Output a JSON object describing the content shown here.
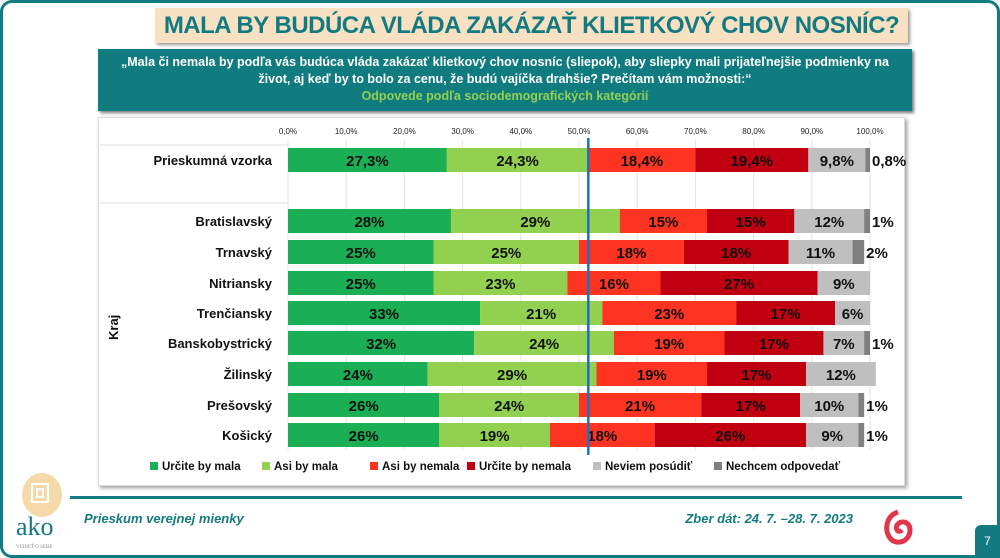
{
  "header": {
    "title": "MALA BY BUDÚCA VLÁDA ZAKÁZAŤ KLIETKOVÝ CHOV NOSNÍC?",
    "question": "„Mala či nemala by podľa vás budúca vláda zakázať klietkový chov nosníc (sliepok), aby sliepky mali prijateľnejšie podmienky na život, aj keď by to bolo za cenu, že budú vajíčka drahšie? Prečítam vám možnosti:“",
    "subtitle": "Odpovede podľa sociodemografických kategórií"
  },
  "chart_data": {
    "type": "bar",
    "orientation": "horizontal",
    "stacked": true,
    "xlim": [
      0,
      100
    ],
    "x_ticks": [
      "0,0%",
      "10,0%",
      "20,0%",
      "30,0%",
      "40,0%",
      "50,0%",
      "60,0%",
      "70,0%",
      "80,0%",
      "90,0%",
      "100,0%"
    ],
    "grid": true,
    "legend_position": "bottom",
    "reference_line_x": 51.6,
    "group_label": "Kraj",
    "series": [
      {
        "name": "Určite by mala",
        "color": "#1aaf54"
      },
      {
        "name": "Asi by mala",
        "color": "#92d050"
      },
      {
        "name": "Asi by nemala",
        "color": "#ff3322"
      },
      {
        "name": "Určite by nemala",
        "color": "#c00010"
      },
      {
        "name": "Neviem posúdiť",
        "color": "#bfbfbf"
      },
      {
        "name": "Nechcem odpovedať",
        "color": "#808080"
      }
    ],
    "rows": [
      {
        "category": "Prieskumná vzorka",
        "values": [
          27.3,
          24.3,
          18.4,
          19.4,
          9.8,
          0.8
        ],
        "labels": [
          "27,3%",
          "24,3%",
          "18,4%",
          "19,4%",
          "9,8%",
          "0,8%"
        ]
      },
      {
        "category": "Bratislavský",
        "values": [
          28,
          29,
          15,
          15,
          12,
          1
        ],
        "labels": [
          "28%",
          "29%",
          "15%",
          "15%",
          "12%",
          "1%"
        ]
      },
      {
        "category": "Trnavský",
        "values": [
          25,
          25,
          18,
          18,
          11,
          2
        ],
        "labels": [
          "25%",
          "25%",
          "18%",
          "18%",
          "11%",
          "2%"
        ]
      },
      {
        "category": "Nitriansky",
        "values": [
          25,
          23,
          16,
          27,
          9,
          0
        ],
        "labels": [
          "25%",
          "23%",
          "16%",
          "27%",
          "9%",
          ""
        ]
      },
      {
        "category": "Trenčiansky",
        "values": [
          33,
          21,
          23,
          17,
          6,
          0
        ],
        "labels": [
          "33%",
          "21%",
          "23%",
          "17%",
          "6%",
          ""
        ]
      },
      {
        "category": "Banskobystrický",
        "values": [
          32,
          24,
          19,
          17,
          7,
          1
        ],
        "labels": [
          "32%",
          "24%",
          "19%",
          "17%",
          "7%",
          "1%"
        ]
      },
      {
        "category": "Žilinský",
        "values": [
          24,
          29,
          19,
          17,
          12,
          0
        ],
        "labels": [
          "24%",
          "29%",
          "19%",
          "17%",
          "12%",
          ""
        ]
      },
      {
        "category": "Prešovský",
        "values": [
          26,
          24,
          21,
          17,
          10,
          1
        ],
        "labels": [
          "26%",
          "24%",
          "21%",
          "17%",
          "10%",
          "1%"
        ]
      },
      {
        "category": "Košický",
        "values": [
          26,
          19,
          18,
          26,
          9,
          1
        ],
        "labels": [
          "26%",
          "19%",
          "18%",
          "26%",
          "9%",
          "1%"
        ]
      }
    ]
  },
  "footer": {
    "left": "Prieskum verejnej mienky",
    "right": "Zber dát: 24. 7. –28. 7. 2023",
    "page": "7",
    "logo_text": "ako",
    "logo_tagline": "VEDIEŤ O SEBE"
  }
}
